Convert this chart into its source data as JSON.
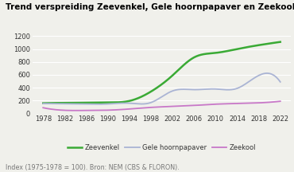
{
  "title": "Trend verspreiding Zeevenkel, Gele hoornpapaver en Zeekool",
  "footnote": "Index (1975-1978 = 100). Bron: NEM (CBS & FLORON).",
  "years": [
    1978,
    1982,
    1986,
    1990,
    1994,
    1998,
    2002,
    2006,
    2010,
    2014,
    2018,
    2022
  ],
  "zeevenkel": [
    160,
    165,
    168,
    172,
    195,
    340,
    590,
    870,
    940,
    1000,
    1060,
    1110
  ],
  "gele_hoornpapaver": [
    155,
    150,
    145,
    148,
    160,
    170,
    350,
    370,
    380,
    390,
    590,
    490
  ],
  "zeekool": [
    90,
    50,
    48,
    52,
    70,
    95,
    110,
    125,
    145,
    155,
    165,
    190
  ],
  "color_zeevenkel": "#3aaa35",
  "color_gele": "#aab4d4",
  "color_zeekool": "#c878c8",
  "ylim": [
    0,
    1200
  ],
  "yticks": [
    0,
    200,
    400,
    600,
    800,
    1000,
    1200
  ],
  "xlim": [
    1976,
    2024
  ],
  "background_color": "#f0f0eb",
  "title_fontsize": 7.5,
  "footnote_fontsize": 5.8,
  "legend_fontsize": 6.0,
  "tick_fontsize": 6.0,
  "grid_color": "#ffffff",
  "text_color": "#333333",
  "footnote_color": "#777777"
}
